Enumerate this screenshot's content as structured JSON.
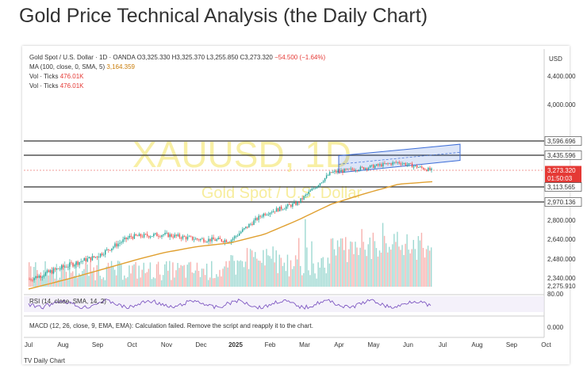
{
  "page": {
    "title": "Gold Price Technical Analysis (the Daily Chart)"
  },
  "legend": {
    "symbol": "Gold Spot / U.S. Dollar · 1D · OANDA",
    "ohlc": "O3,325.330 H3,325.370 L3,255.850 C3,273.320",
    "change": "−54.500 (−1.64%)",
    "ma_label": "MA (100, close, 0, SMA, 5)",
    "ma_value": "3,164.359",
    "vol1_label": "Vol · Ticks",
    "vol1_value": "476.01K",
    "vol2_label": "Vol · Ticks",
    "vol2_value": "476.01K"
  },
  "watermark": {
    "main": "XAUUSD, 1D",
    "sub": "Gold Spot / U.S. Dollar"
  },
  "price_axis": {
    "currency": "USD",
    "ticks": [
      "4,400.000",
      "4,000.000",
      "2,800.000",
      "2,640.000",
      "2,480.000",
      "2,340.000",
      "2,275.910"
    ]
  },
  "level_labels": [
    {
      "value": "3,596.696",
      "bg": "#ffffff",
      "fg": "#333333"
    },
    {
      "value": "3,435.596",
      "bg": "#ffffff",
      "fg": "#333333"
    },
    {
      "value": "3,273.320",
      "bg": "#e53935",
      "fg": "#ffffff"
    },
    {
      "value": "01:50:03",
      "bg": "#e53935",
      "fg": "#ffffff"
    },
    {
      "value": "3,113.565",
      "bg": "#ffffff",
      "fg": "#333333"
    },
    {
      "value": "2,970.136",
      "bg": "#ffffff",
      "fg": "#333333"
    }
  ],
  "rsi": {
    "label": "RSI (14, close, SMA, 14, 2)",
    "axis_value": "80.00"
  },
  "macd": {
    "note": "MACD (12, 26, close, 9, EMA, EMA): Calculation failed. Remove the script and reapply it to the chart.",
    "axis_value": "0.000"
  },
  "time_axis": [
    "Jul",
    "Aug",
    "Sep",
    "Oct",
    "Nov",
    "Dec",
    "2025",
    "Feb",
    "Mar",
    "Apr",
    "May",
    "Jun",
    "Jul",
    "Aug",
    "Sep",
    "Oct"
  ],
  "bottom_label": "TV Daily Chart",
  "colors": {
    "up": "#26a69a",
    "down": "#ef5350",
    "ma": "#e0a030",
    "channel": "#3f6fd8",
    "rsi": "#7e57c2"
  },
  "chart_data": {
    "type": "line",
    "title": "",
    "xlabel": "",
    "ylabel": "",
    "ylim": [
      2200,
      4600
    ],
    "series": [
      {
        "name": "XAUUSD",
        "x": [
          "Jul",
          "Aug",
          "Sep",
          "Oct",
          "Nov",
          "Dec",
          "2025",
          "Feb",
          "Mar",
          "Apr",
          "May",
          "Jun",
          "Jul"
        ],
        "values": [
          2330,
          2420,
          2500,
          2660,
          2680,
          2640,
          2630,
          2860,
          2960,
          3250,
          3300,
          3360,
          3273
        ]
      },
      {
        "name": "MA (100, close, 0, SMA, 5)",
        "x": [
          "Jul",
          "Aug",
          "Sep",
          "Oct",
          "Nov",
          "Dec",
          "2025",
          "Feb",
          "Mar",
          "Apr",
          "May",
          "Jun",
          "Jul"
        ],
        "values": [
          2250,
          2320,
          2390,
          2460,
          2530,
          2580,
          2610,
          2680,
          2800,
          2950,
          3050,
          3140,
          3164
        ]
      }
    ],
    "levels": [
      3596.696,
      3435.596,
      3113.565,
      2970.136
    ],
    "last_price": 3273.32
  }
}
